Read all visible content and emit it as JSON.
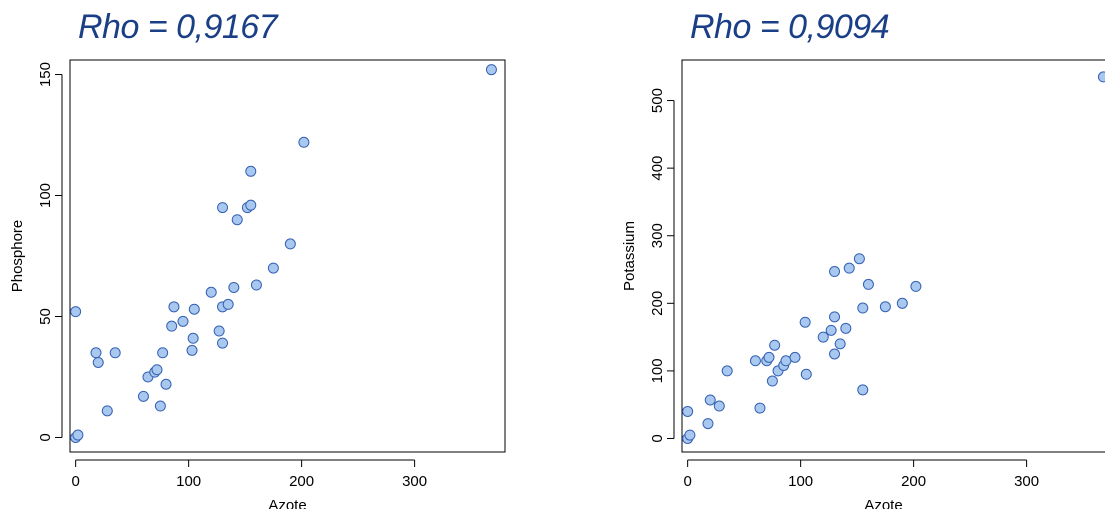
{
  "chart_data": [
    {
      "type": "scatter",
      "title": "Rho = 0,9167",
      "xlabel": "Azote",
      "ylabel": "Phosphore",
      "xlim": [
        -5,
        380
      ],
      "ylim": [
        -6,
        156
      ],
      "xticks": [
        0,
        100,
        200,
        300
      ],
      "yticks": [
        0,
        50,
        100,
        150
      ],
      "grid": false,
      "marker_color": "#a9c8ef",
      "marker_edge_color": "#3561b3",
      "points": [
        [
          0,
          0
        ],
        [
          2,
          1
        ],
        [
          0,
          52
        ],
        [
          18,
          35
        ],
        [
          20,
          31
        ],
        [
          28,
          11
        ],
        [
          35,
          35
        ],
        [
          60,
          17
        ],
        [
          64,
          25
        ],
        [
          70,
          27
        ],
        [
          72,
          28
        ],
        [
          75,
          13
        ],
        [
          77,
          35
        ],
        [
          80,
          22
        ],
        [
          85,
          46
        ],
        [
          87,
          54
        ],
        [
          95,
          48
        ],
        [
          103,
          36
        ],
        [
          104,
          41
        ],
        [
          105,
          53
        ],
        [
          120,
          60
        ],
        [
          127,
          44
        ],
        [
          130,
          39
        ],
        [
          130,
          54
        ],
        [
          130,
          95
        ],
        [
          135,
          55
        ],
        [
          140,
          62
        ],
        [
          143,
          90
        ],
        [
          152,
          95
        ],
        [
          155,
          96
        ],
        [
          155,
          110
        ],
        [
          160,
          63
        ],
        [
          175,
          70
        ],
        [
          190,
          80
        ],
        [
          202,
          122
        ],
        [
          368,
          152
        ]
      ]
    },
    {
      "type": "scatter",
      "title": "Rho = 0,9094",
      "xlabel": "Azote",
      "ylabel": "Potassium",
      "xlim": [
        -5,
        380
      ],
      "ylim": [
        -20,
        560
      ],
      "xticks": [
        0,
        100,
        200,
        300
      ],
      "yticks": [
        0,
        100,
        200,
        300,
        400,
        500
      ],
      "grid": false,
      "marker_color": "#a9c8ef",
      "marker_edge_color": "#3561b3",
      "points": [
        [
          0,
          0
        ],
        [
          2,
          5
        ],
        [
          0,
          40
        ],
        [
          18,
          22
        ],
        [
          20,
          57
        ],
        [
          28,
          48
        ],
        [
          35,
          100
        ],
        [
          60,
          115
        ],
        [
          64,
          45
        ],
        [
          70,
          115
        ],
        [
          72,
          120
        ],
        [
          75,
          85
        ],
        [
          77,
          138
        ],
        [
          80,
          100
        ],
        [
          85,
          108
        ],
        [
          87,
          115
        ],
        [
          95,
          120
        ],
        [
          105,
          95
        ],
        [
          104,
          172
        ],
        [
          120,
          150
        ],
        [
          127,
          160
        ],
        [
          130,
          125
        ],
        [
          130,
          180
        ],
        [
          130,
          247
        ],
        [
          135,
          140
        ],
        [
          140,
          163
        ],
        [
          143,
          252
        ],
        [
          152,
          266
        ],
        [
          155,
          72
        ],
        [
          155,
          193
        ],
        [
          160,
          228
        ],
        [
          175,
          195
        ],
        [
          190,
          200
        ],
        [
          202,
          225
        ],
        [
          368,
          535
        ]
      ]
    }
  ]
}
